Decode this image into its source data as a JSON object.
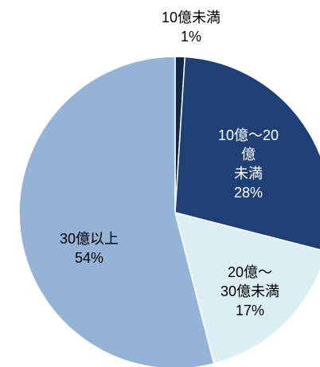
{
  "chart_data": {
    "type": "pie",
    "categories": [
      "10億未満",
      "10億～20億\n未満",
      "20億～\n30億未満",
      "30億以上"
    ],
    "values": [
      1,
      28,
      17,
      54
    ],
    "value_labels": [
      "1%",
      "28%",
      "17%",
      "54%"
    ],
    "colors": [
      "#10284a",
      "#1f4074",
      "#dbeef4",
      "#95b3d7"
    ]
  }
}
